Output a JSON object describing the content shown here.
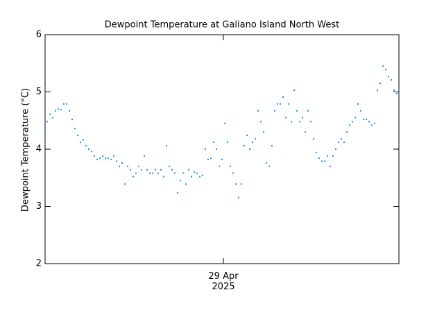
{
  "chart_data": {
    "type": "scatter",
    "title": "Dewpoint Temperature at Galiano Island North West",
    "y_label": "Dewpoint Temperature (°C)",
    "color": "#1a8cff",
    "xlim": [
      -12.85,
      12.65
    ],
    "xticks": [
      {
        "value": 0,
        "label": "29 Apr\n2025"
      }
    ],
    "ylim": [
      2,
      6
    ],
    "yticks": [
      2,
      3,
      4,
      5,
      6
    ],
    "x": [
      -12.85,
      -12.7,
      -12.5,
      -12.3,
      -12.1,
      -11.9,
      -11.7,
      -11.5,
      -11.3,
      -11.1,
      -10.9,
      -10.7,
      -10.5,
      -10.3,
      -10.1,
      -9.9,
      -9.7,
      -9.5,
      -9.3,
      -9.1,
      -8.9,
      -8.7,
      -8.5,
      -8.3,
      -8.1,
      -7.9,
      -7.7,
      -7.5,
      -7.3,
      -7.1,
      -6.9,
      -6.7,
      -6.5,
      -6.3,
      -6.1,
      -5.9,
      -5.7,
      -5.5,
      -5.3,
      -5.1,
      -4.9,
      -4.7,
      -4.5,
      -4.3,
      -4.1,
      -3.9,
      -3.7,
      -3.5,
      -3.3,
      -3.1,
      -2.9,
      -2.7,
      -2.5,
      -2.3,
      -2.1,
      -1.9,
      -1.7,
      -1.5,
      -1.3,
      -1.1,
      -0.9,
      -0.7,
      -0.5,
      -0.3,
      -0.1,
      0.1,
      0.3,
      0.5,
      0.7,
      0.9,
      1.1,
      1.3,
      1.5,
      1.7,
      1.9,
      2.1,
      2.3,
      2.5,
      2.7,
      2.9,
      3.1,
      3.3,
      3.5,
      3.7,
      3.9,
      4.1,
      4.3,
      4.5,
      4.7,
      4.9,
      5.1,
      5.3,
      5.5,
      5.7,
      5.9,
      6.1,
      6.3,
      6.5,
      6.7,
      6.9,
      7.1,
      7.3,
      7.5,
      7.7,
      7.9,
      8.1,
      8.3,
      8.5,
      8.7,
      8.9,
      9.1,
      9.3,
      9.5,
      9.7,
      9.9,
      10.1,
      10.3,
      10.5,
      10.7,
      10.9,
      11.1,
      11.3,
      11.5,
      11.7,
      11.9,
      12.1,
      12.3,
      12.5
    ],
    "values": [
      4.36,
      4.48,
      4.61,
      4.55,
      4.67,
      4.7,
      4.69,
      4.79,
      4.79,
      4.67,
      4.52,
      4.36,
      4.24,
      4.12,
      4.16,
      4.06,
      4.0,
      3.96,
      3.88,
      3.82,
      3.84,
      3.88,
      3.84,
      3.84,
      3.82,
      3.88,
      3.79,
      3.7,
      3.76,
      3.39,
      3.7,
      3.64,
      3.52,
      3.58,
      3.7,
      3.64,
      3.88,
      3.64,
      3.58,
      3.58,
      3.64,
      3.58,
      3.64,
      3.52,
      4.06,
      3.7,
      3.64,
      3.58,
      3.24,
      3.45,
      3.58,
      3.39,
      3.64,
      3.52,
      3.6,
      3.58,
      3.52,
      3.54,
      4.0,
      3.82,
      3.84,
      4.12,
      4.0,
      3.7,
      3.82,
      4.45,
      4.12,
      3.7,
      3.58,
      3.39,
      3.15,
      3.39,
      4.06,
      4.24,
      4.0,
      4.12,
      4.18,
      4.67,
      4.48,
      4.3,
      3.76,
      3.7,
      4.06,
      4.67,
      4.79,
      4.79,
      4.91,
      4.55,
      4.79,
      4.48,
      5.03,
      4.67,
      4.48,
      4.55,
      4.3,
      4.67,
      4.48,
      4.18,
      3.94,
      3.84,
      3.79,
      3.79,
      3.88,
      3.7,
      3.88,
      4.0,
      4.12,
      4.18,
      4.12,
      4.3,
      4.42,
      4.48,
      4.55,
      4.79,
      4.67,
      4.52,
      4.52,
      4.48,
      4.42,
      4.45,
      5.03,
      5.15,
      5.45,
      5.39,
      5.27,
      5.21,
      5.03,
      4.97
    ]
  }
}
